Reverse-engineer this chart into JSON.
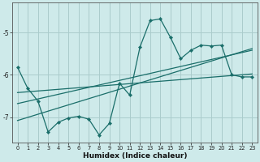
{
  "title": "",
  "xlabel": "Humidex (Indice chaleur)",
  "background_color": "#ceeaea",
  "grid_color": "#aacccc",
  "line_color": "#1a6e6a",
  "xlim": [
    -0.5,
    23.5
  ],
  "ylim": [
    -7.6,
    -4.3
  ],
  "yticks": [
    -7,
    -6,
    -5
  ],
  "xticks": [
    0,
    1,
    2,
    3,
    4,
    5,
    6,
    7,
    8,
    9,
    10,
    11,
    12,
    13,
    14,
    15,
    16,
    17,
    18,
    19,
    20,
    21,
    22,
    23
  ],
  "series_main": {
    "x": [
      0,
      1,
      2,
      3,
      4,
      5,
      6,
      7,
      8,
      9,
      10,
      11,
      12,
      13,
      14,
      15,
      16,
      17,
      18,
      19,
      20,
      21,
      22,
      23
    ],
    "y": [
      -5.82,
      -6.32,
      -6.62,
      -7.35,
      -7.12,
      -7.02,
      -6.98,
      -7.05,
      -7.42,
      -7.15,
      -6.2,
      -6.48,
      -5.35,
      -4.72,
      -4.68,
      -5.12,
      -5.62,
      -5.42,
      -5.3,
      -5.32,
      -5.3,
      -6.0,
      -6.05,
      -6.05
    ]
  },
  "trend_lines": [
    {
      "x": [
        0,
        23
      ],
      "y": [
        -6.42,
        -5.98
      ]
    },
    {
      "x": [
        0,
        23
      ],
      "y": [
        -6.68,
        -5.42
      ]
    },
    {
      "x": [
        0,
        23
      ],
      "y": [
        -7.08,
        -5.38
      ]
    }
  ]
}
